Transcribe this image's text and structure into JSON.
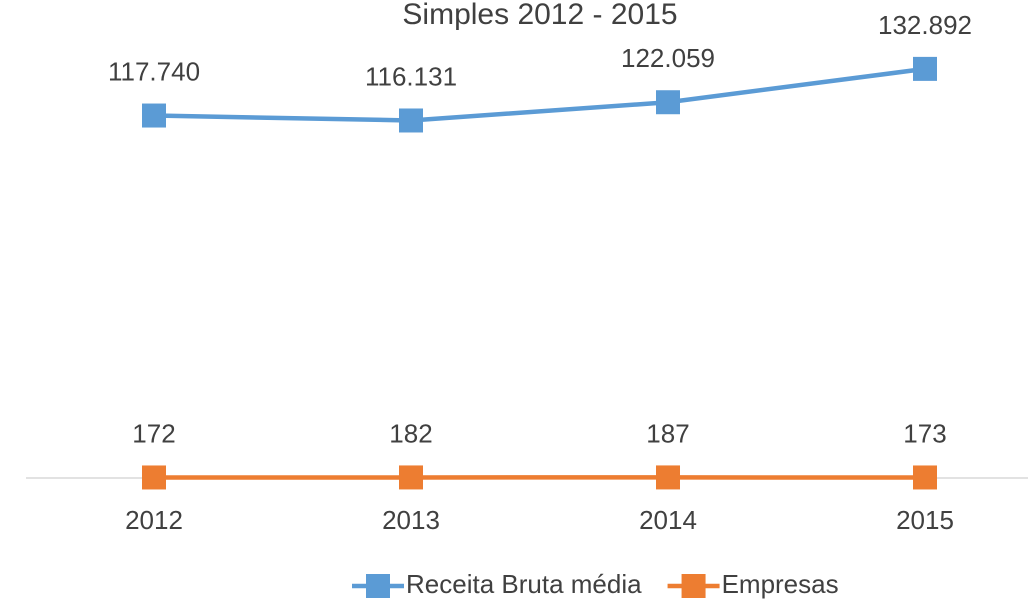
{
  "chart_data": {
    "type": "line",
    "title": "Simples 2012 - 2015",
    "categories": [
      "2012",
      "2013",
      "2014",
      "2015"
    ],
    "series": [
      {
        "name": "Receita Bruta média",
        "color": "#5b9bd5",
        "values": [
          117740,
          116131,
          122059,
          132892
        ],
        "value_labels": [
          "117.740",
          "116.131",
          "122.059",
          "132.892"
        ]
      },
      {
        "name": "Empresas",
        "color": "#ed7d31",
        "values": [
          172,
          182,
          187,
          173
        ]
      }
    ],
    "ylim": [
      0,
      140000
    ],
    "legend": "bottom"
  }
}
